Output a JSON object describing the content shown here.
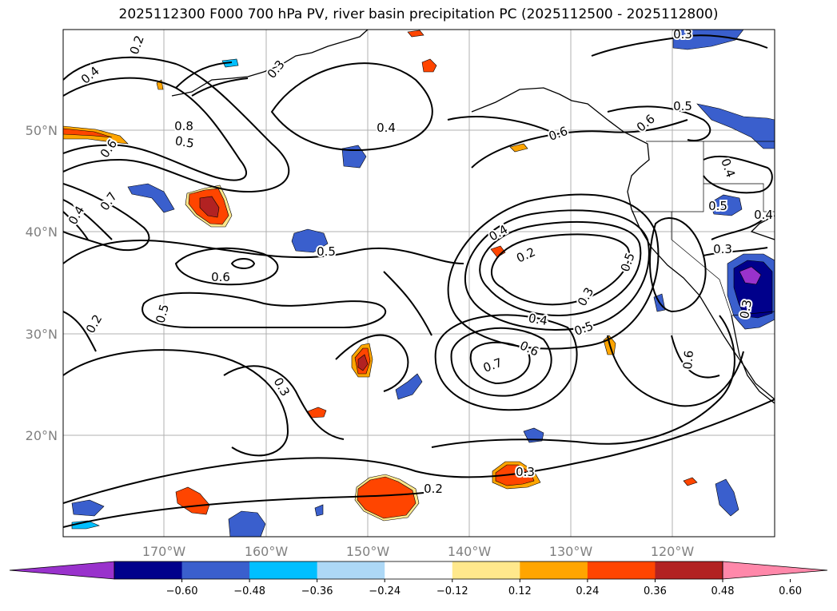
{
  "title": "2025112300 F000 700 hPa PV, river basin precipitation PC (2025112500 - 2025112800)",
  "map": {
    "lat_labels": [
      "50°N",
      "40°N",
      "30°N",
      "20°N"
    ],
    "lon_labels": [
      "170°W",
      "160°W",
      "150°W",
      "140°W",
      "130°W",
      "120°W"
    ],
    "contour_labels": [
      "0.2",
      "0.3",
      "0.4",
      "0.5",
      "0.6",
      "0.7",
      "0.8",
      "0.4",
      "0.5",
      "0.6",
      "0.2",
      "0.3",
      "0.4",
      "0.5",
      "0.6",
      "0.7",
      "0.2",
      "0.3",
      "0.5",
      "0.6",
      "0.4",
      "0.3",
      "0.5",
      "0.6",
      "0.4",
      "0.5",
      "0.4",
      "0.3",
      "0.2",
      "0.3",
      "0.6",
      "0.5",
      "0.3",
      "0.4"
    ]
  },
  "colorbar": {
    "tick_labels": [
      "−0.60",
      "−0.48",
      "−0.36",
      "−0.24",
      "−0.12",
      "0.12",
      "0.24",
      "0.36",
      "0.48",
      "0.60"
    ],
    "colors": [
      "#9932cc",
      "#00008b",
      "#3a5fcd",
      "#00bfff",
      "#add8f6",
      "#ffffff",
      "#ffe88c",
      "#ffa500",
      "#ff4500",
      "#b22222",
      "#ff88aa"
    ]
  }
}
